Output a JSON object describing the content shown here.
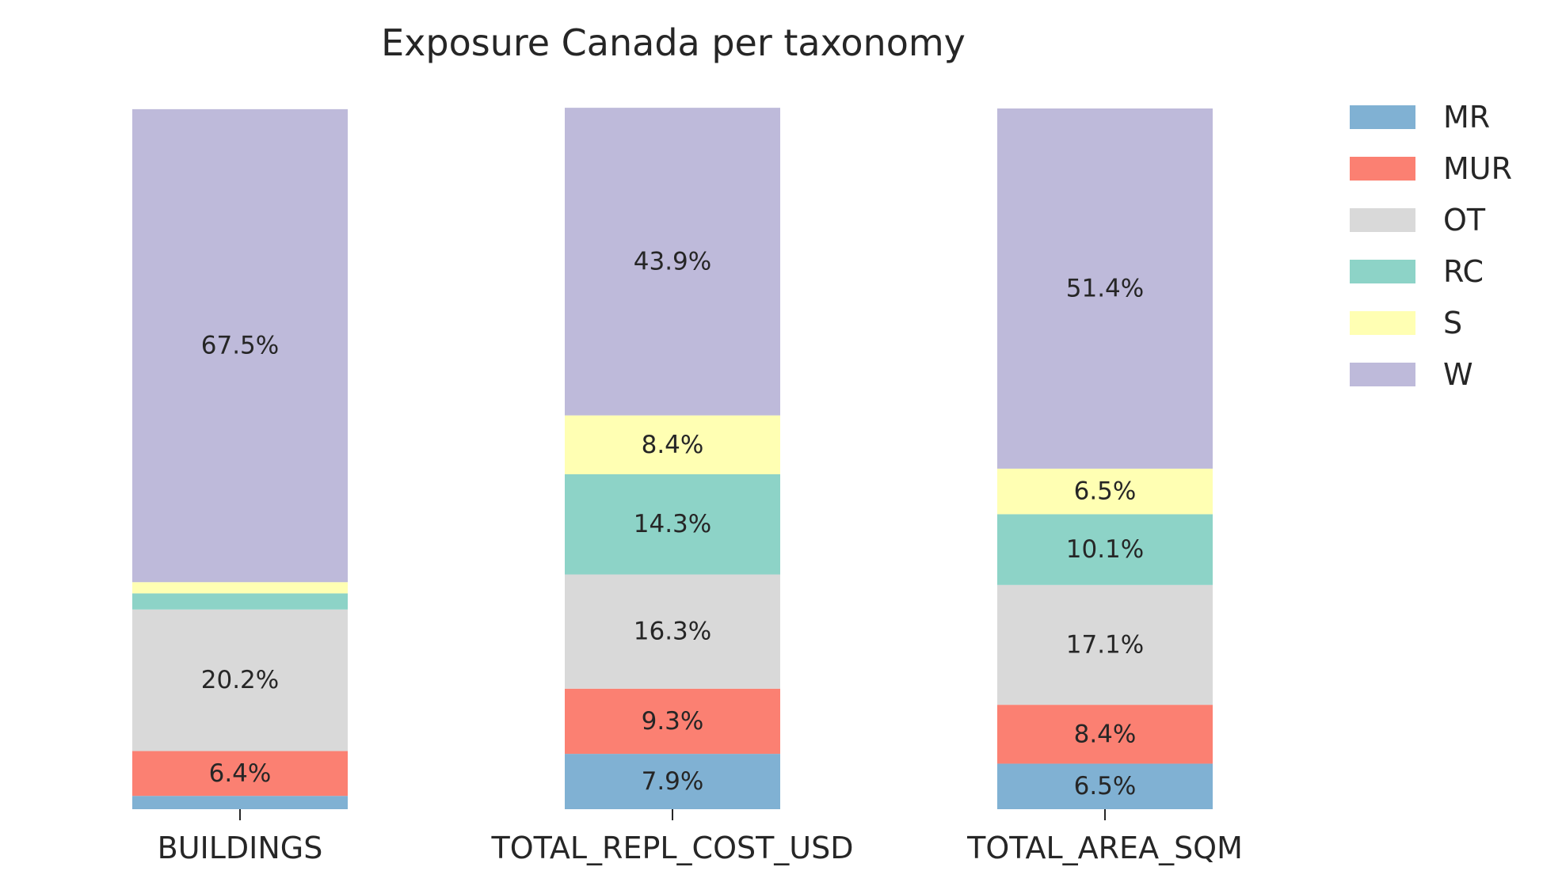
{
  "chart_data": {
    "type": "bar",
    "stacked": true,
    "normalized_percent": true,
    "title": "Exposure Canada per taxonomy",
    "xlabel": "",
    "ylabel": "",
    "ylim": [
      0,
      100
    ],
    "grid": false,
    "legend": "right",
    "categories": [
      "BUILDINGS",
      "TOTAL_REPL_COST_USD",
      "TOTAL_AREA_SQM"
    ],
    "series": [
      {
        "name": "MR",
        "color": "#80b1d3",
        "values": [
          1.9,
          7.9,
          6.5
        ],
        "labels": [
          "",
          "7.9%",
          "6.5%"
        ]
      },
      {
        "name": "MUR",
        "color": "#fb8072",
        "values": [
          6.4,
          9.3,
          8.4
        ],
        "labels": [
          "6.4%",
          "9.3%",
          "8.4%"
        ]
      },
      {
        "name": "OT",
        "color": "#d9d9d9",
        "values": [
          20.2,
          16.3,
          17.1
        ],
        "labels": [
          "20.2%",
          "16.3%",
          "17.1%"
        ]
      },
      {
        "name": "RC",
        "color": "#8dd3c7",
        "values": [
          2.3,
          14.3,
          10.1
        ],
        "labels": [
          "",
          "14.3%",
          "10.1%"
        ]
      },
      {
        "name": "S",
        "color": "#ffffb3",
        "values": [
          1.6,
          8.4,
          6.5
        ],
        "labels": [
          "",
          "8.4%",
          "6.5%"
        ]
      },
      {
        "name": "W",
        "color": "#bebada",
        "values": [
          67.5,
          43.9,
          51.4
        ],
        "labels": [
          "67.5%",
          "43.9%",
          "51.4%"
        ]
      }
    ]
  }
}
